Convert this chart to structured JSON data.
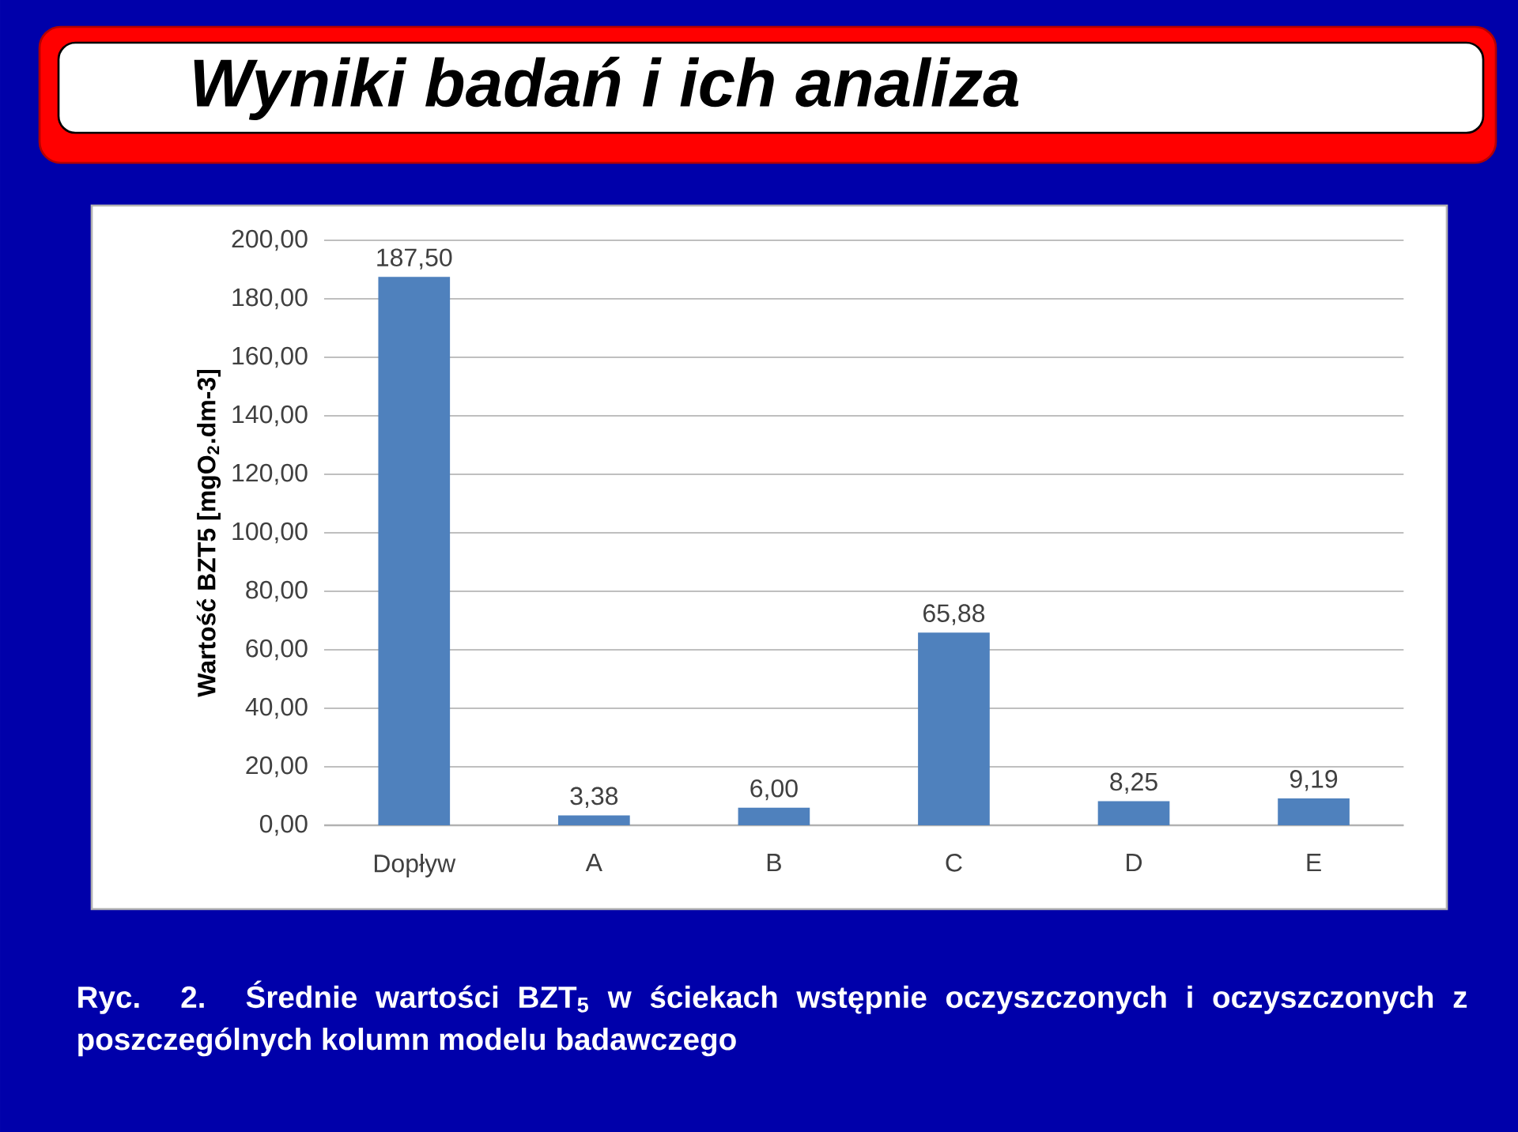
{
  "chart_data": {
    "type": "bar",
    "title": "Wyniki badań i ich analiza",
    "ylabel": "Wartość BZT5 [mgO$_{2}$.dm-3]",
    "categories": [
      "Dopływ",
      "A",
      "B",
      "C",
      "D",
      "E"
    ],
    "values": [
      187.5,
      3.38,
      6.0,
      65.88,
      8.25,
      9.19
    ],
    "value_labels": [
      "187,50",
      "3,38",
      "6,00",
      "65,88",
      "8,25",
      "9,19"
    ],
    "color": "#4f81bd",
    "ylim": [
      0,
      200
    ],
    "yticks": [
      {
        "value": 0,
        "label": "0,00"
      },
      {
        "value": 20,
        "label": "20,00"
      },
      {
        "value": 40,
        "label": "40,00"
      },
      {
        "value": 60,
        "label": "60,00"
      },
      {
        "value": 80,
        "label": "80,00"
      },
      {
        "value": 100,
        "label": "100,00"
      },
      {
        "value": 120,
        "label": "120,00"
      },
      {
        "value": 140,
        "label": "140,00"
      },
      {
        "value": 160,
        "label": "160,00"
      },
      {
        "value": 180,
        "label": "180,00"
      },
      {
        "value": 200,
        "label": "200,00"
      }
    ],
    "grid": "y",
    "annotations": [
      "Ryc. 2. Średnie wartości BZT$_{5}$ w ściekach wstępnie oczyszczonych i oczyszczonych z poszczególnych kolumn modelu badawczego"
    ]
  }
}
